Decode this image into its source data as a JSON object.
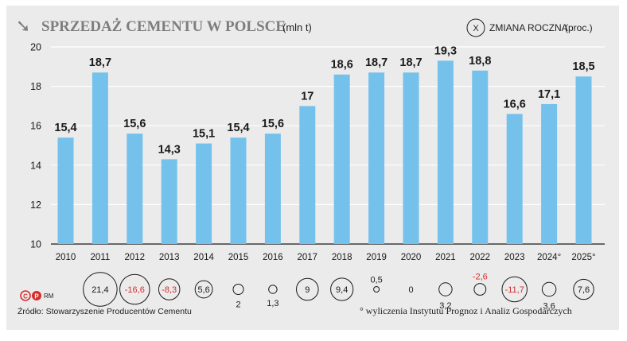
{
  "chart_data": {
    "type": "bar",
    "title": "SPRZEDAŻ CEMENTU W POLSCE",
    "unit": "(mln t)",
    "legend": {
      "symbol": "X",
      "label": "ZMIANA ROCZNA",
      "unit": "(proc.)"
    },
    "categories": [
      "2010",
      "2011",
      "2012",
      "2013",
      "2014",
      "2015",
      "2016",
      "2017",
      "2018",
      "2019",
      "2020",
      "2021",
      "2022",
      "2023",
      "2024°",
      "2025°"
    ],
    "values": [
      15.4,
      18.7,
      15.6,
      14.3,
      15.1,
      15.4,
      15.6,
      17,
      18.6,
      18.7,
      18.7,
      19.3,
      18.8,
      16.6,
      17.1,
      18.5
    ],
    "value_labels": [
      "15,4",
      "18,7",
      "15,6",
      "14,3",
      "15,1",
      "15,4",
      "15,6",
      "17",
      "18,6",
      "18,7",
      "18,7",
      "19,3",
      "18,8",
      "16,6",
      "17,1",
      "18,5"
    ],
    "ylim": [
      10,
      20
    ],
    "yticks": [
      10,
      12,
      14,
      16,
      18,
      20
    ],
    "annual_change": [
      null,
      21.4,
      -16.6,
      -8.3,
      5.6,
      2,
      1.3,
      9,
      9.4,
      0.5,
      0,
      3.2,
      -2.6,
      -11.7,
      3.6,
      7.6
    ],
    "annual_change_labels": [
      "",
      "21,4",
      "-16,6",
      "-8,3",
      "5,6",
      "2",
      "1,3",
      "9",
      "9,4",
      "0,5",
      "0",
      "3,2",
      "-2,6",
      "-11,7",
      "3,6",
      "7,6"
    ],
    "colors": {
      "bar": "#74c2eb",
      "negative": "#d62c2c",
      "text": "#1a1a1a",
      "title": "#7d7d7d",
      "card": "#ebebeb",
      "grid": "#ffffff"
    }
  },
  "footer": {
    "logo_text": "RM",
    "source": "Źródło: Stowarzyszenie Producentów Cementu",
    "note": "° wyliczenia Instytutu Prognoz i Analiz Gospodarczych"
  }
}
